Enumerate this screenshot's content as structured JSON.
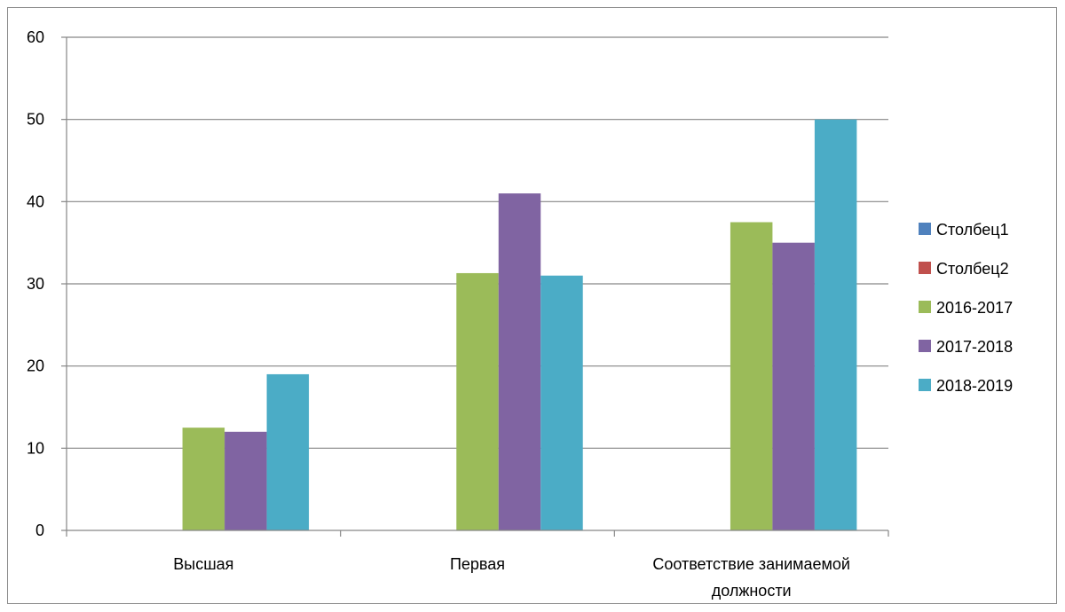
{
  "chart_data": {
    "type": "bar",
    "title": "",
    "xlabel": "",
    "ylabel": "",
    "ylim": [
      0,
      60
    ],
    "yticks": [
      0,
      10,
      20,
      30,
      40,
      50,
      60
    ],
    "grid": true,
    "legend_position": "right",
    "categories": [
      [
        "Высшая"
      ],
      [
        "Первая"
      ],
      [
        "Соответствие занимаемой",
        "должности"
      ]
    ],
    "series": [
      {
        "name": "Столбец1",
        "color": "#4f81bd",
        "values": [
          0,
          0,
          0
        ]
      },
      {
        "name": "Столбец2",
        "color": "#c0504d",
        "values": [
          0,
          0,
          0
        ]
      },
      {
        "name": "2016-2017",
        "color": "#9bbb59",
        "values": [
          12.5,
          31.3,
          37.5
        ]
      },
      {
        "name": "2017-2018",
        "color": "#8064a2",
        "values": [
          12,
          41,
          35
        ]
      },
      {
        "name": "2018-2019",
        "color": "#4bacc6",
        "values": [
          19,
          31,
          50
        ]
      }
    ]
  }
}
